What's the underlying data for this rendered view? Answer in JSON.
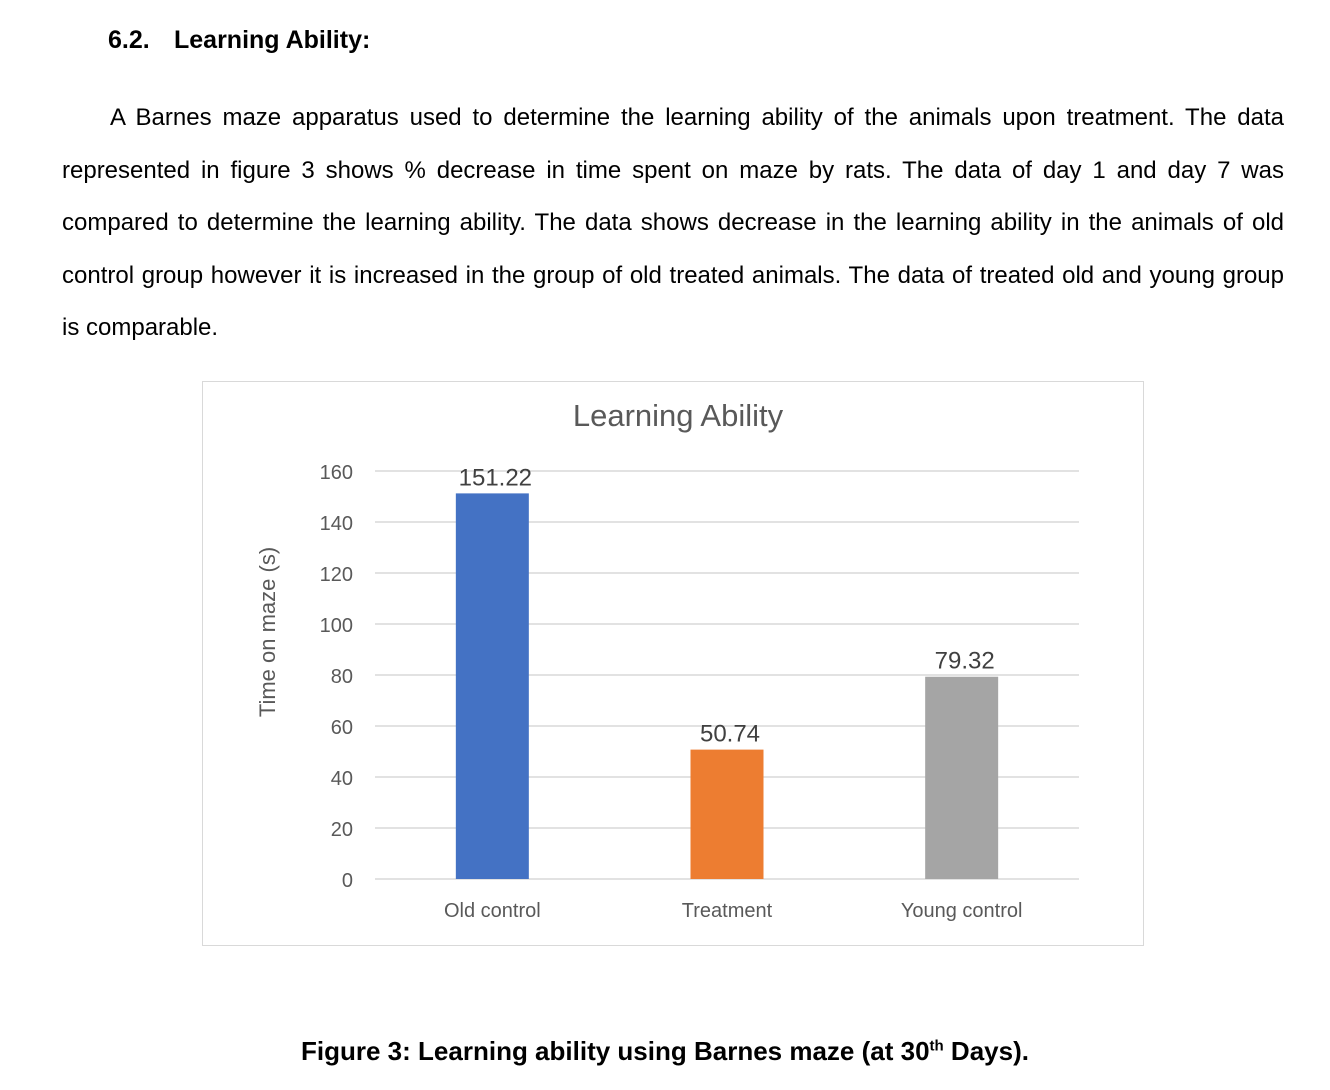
{
  "section": {
    "number": "6.2.",
    "title": "Learning Ability:"
  },
  "paragraph": "A Barnes maze apparatus used to determine the learning ability of the animals upon treatment. The data represented in figure 3 shows % decrease in time spent on maze by rats. The data of day 1 and day 7 was compared to determine the learning ability. The data shows decrease in the learning ability in the animals of old control group however it is increased in the group of old treated animals. The data of treated old and young group is comparable.",
  "chart_data": {
    "type": "bar",
    "title": "Learning Ability",
    "xlabel": "",
    "ylabel": "Time on maze (s)",
    "ylim": [
      0,
      160
    ],
    "yticks": [
      0,
      20,
      40,
      60,
      80,
      100,
      120,
      140,
      160
    ],
    "categories": [
      "Old control",
      "Treatment",
      "Young control"
    ],
    "values": [
      151.22,
      50.74,
      79.32
    ],
    "colors": [
      "#4472c4",
      "#ed7d31",
      "#a5a5a5"
    ],
    "data_labels": [
      "151.22",
      "50.74",
      "79.32"
    ],
    "grid": true,
    "legend": "none"
  },
  "caption": {
    "prefix": "Figure 3:",
    "text_before": "Learning ability using Barnes maze (at 30",
    "superscript": "th",
    "text_after": " Days)."
  }
}
